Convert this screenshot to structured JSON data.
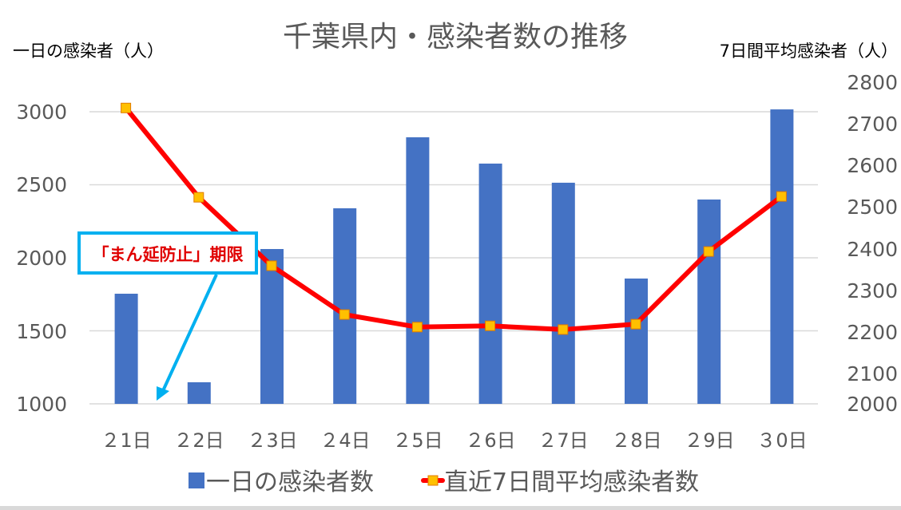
{
  "chart_data": {
    "type": "bar+line",
    "title": "千葉県内・感染者数の推移",
    "ylabel_left": "一日の感染者（人）",
    "ylabel_right": "7日間平均感染者（人）",
    "xlabel": "",
    "categories": [
      "２1日",
      "２2日",
      "２3日",
      "２4日",
      "２5日",
      "２6日",
      "２7日",
      "２8日",
      "２9日",
      "３0日"
    ],
    "ylim_left": [
      1000,
      3000
    ],
    "yticks_left": [
      1000,
      1500,
      2000,
      2500,
      3000
    ],
    "ylim_right": [
      2000,
      2800
    ],
    "yticks_right": [
      2000,
      2100,
      2200,
      2300,
      2400,
      2500,
      2600,
      2700,
      2800
    ],
    "grid": true,
    "legend_position": "bottom",
    "series": [
      {
        "name": "一日の感染者数",
        "type": "bar",
        "axis": "left",
        "color": "#4472c4",
        "values": [
          1754,
          1148,
          2060,
          2339,
          2825,
          2645,
          2514,
          1858,
          2399,
          3016
        ]
      },
      {
        "name": "直近7日間平均感染者数",
        "type": "line",
        "axis": "right",
        "color": "#ff0000",
        "marker_color": "#ffc000",
        "values": [
          2709,
          2495,
          2331,
          2214,
          2184,
          2187,
          2178,
          2191,
          2365,
          2497
        ]
      }
    ],
    "annotations": [
      {
        "text": "「まん延防止」期限",
        "text_color": "#e00000",
        "box_border_color": "#00b0f0",
        "arrow_color": "#00b0f0",
        "points_to": "between ２1日 and ２2日 at baseline"
      }
    ]
  },
  "chart": {
    "title": "千葉県内・感染者数の推移",
    "left_axis_title": "一日の感染者（人）",
    "right_axis_title": "7日間平均感染者（人）",
    "left_ticks": [
      "3000",
      "2500",
      "2000",
      "1500",
      "1000"
    ],
    "right_ticks": [
      "2800",
      "2700",
      "2600",
      "2500",
      "2400",
      "2300",
      "2200",
      "2100",
      "2000"
    ],
    "x_labels": [
      "２1日",
      "２2日",
      "２3日",
      "２4日",
      "２5日",
      "２6日",
      "２7日",
      "２8日",
      "２9日",
      "３0日"
    ],
    "legend": {
      "bar_label": "一日の感染者数",
      "line_label": "直近7日間平均感染者数"
    },
    "annotation": "「まん延防止」期限"
  }
}
